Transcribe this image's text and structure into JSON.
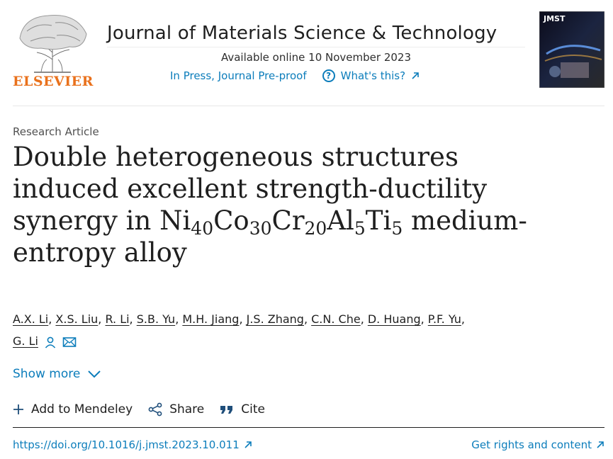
{
  "publisher": {
    "name": "ELSEVIER"
  },
  "journal": {
    "title": "Journal of Materials Science & Technology",
    "available": "Available online 10 November 2023",
    "status": "In Press, Journal Pre-proof",
    "whats_this": "What's this?",
    "cover_label": "JMST"
  },
  "article": {
    "type": "Research Article",
    "title_parts": {
      "line1": "Double heterogeneous structures",
      "line2": "induced excellent strength-ductility",
      "line3_pre": "synergy in ",
      "el1": "Ni",
      "n1": "40",
      "el2": "Co",
      "n2": "30",
      "el3": "Cr",
      "n3": "20",
      "el4": "Al",
      "n4": "5",
      "el5": "Ti",
      "n5": "5",
      "line3_post": " medium-",
      "line4": "entropy alloy"
    },
    "authors": [
      "A.X. Li",
      "X.S. Liu",
      "R. Li",
      "S.B. Yu",
      "M.H. Jiang",
      "J.S. Zhang",
      "C.N. Che",
      "D. Huang",
      "P.F. Yu",
      "G. Li"
    ]
  },
  "controls": {
    "show_more": "Show more",
    "add_mendeley": "Add to Mendeley",
    "share": "Share",
    "cite": "Cite"
  },
  "footer": {
    "doi": "https://doi.org/10.1016/j.jmst.2023.10.011",
    "rights": "Get rights and content"
  },
  "colors": {
    "link": "#0c7dbb",
    "elsevier_orange": "#e9711c",
    "text": "#1f1f1f"
  },
  "icons": [
    "elsevier-tree-logo",
    "question-circle-icon",
    "external-arrow-icon",
    "person-icon",
    "envelope-icon",
    "chevron-down-icon",
    "plus-icon",
    "share-icon",
    "quote-icon"
  ]
}
